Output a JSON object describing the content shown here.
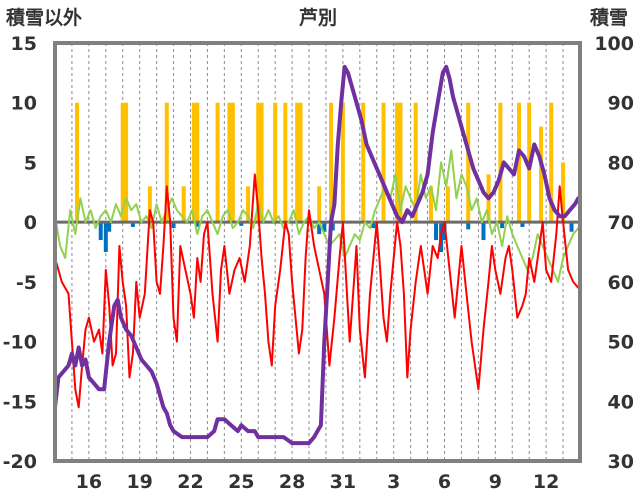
{
  "chart_data": {
    "type": "bar+line",
    "title": "芦別",
    "left_axis": {
      "label": "積雪以外",
      "ylim": [
        -20,
        15
      ],
      "ticks": [
        15,
        10,
        5,
        0,
        -5,
        -10,
        -15,
        -20
      ],
      "tick_labels": [
        "15",
        "10",
        "5",
        "0",
        "-5",
        "-10",
        "-15",
        "-20"
      ]
    },
    "right_axis": {
      "label": "積雪",
      "ylim": [
        30,
        100
      ],
      "ticks": [
        100,
        90,
        80,
        70,
        60,
        50,
        40,
        30
      ],
      "tick_labels": [
        "100",
        "90",
        "80",
        "70",
        "60",
        "50",
        "40",
        "30"
      ]
    },
    "x_axis": {
      "day_range": [
        14,
        45
      ],
      "tick_days": [
        16,
        19,
        22,
        25,
        28,
        31,
        34,
        37,
        40,
        43
      ],
      "tick_labels": [
        "16",
        "19",
        "22",
        "25",
        "28",
        "31",
        "3",
        "6",
        "9",
        "12"
      ]
    },
    "grid": "vertical-dashed-daily",
    "colors": {
      "snow_depth": "#7030a0",
      "temperature": "#ff0000",
      "green_series": "#92d050",
      "orange_bars": "#ffc000",
      "blue_bars": "#0070c0",
      "zero_line": "#6b6b6b",
      "frame": "#808080"
    },
    "orange_bars": [
      {
        "day": 15.3,
        "value": 10
      },
      {
        "day": 18.0,
        "value": 10
      },
      {
        "day": 18.2,
        "value": 10
      },
      {
        "day": 19.6,
        "value": 3
      },
      {
        "day": 20.6,
        "value": 10
      },
      {
        "day": 21.6,
        "value": 3
      },
      {
        "day": 22.2,
        "value": 10
      },
      {
        "day": 22.4,
        "value": 10
      },
      {
        "day": 23.6,
        "value": 10
      },
      {
        "day": 24.3,
        "value": 10
      },
      {
        "day": 24.5,
        "value": 10
      },
      {
        "day": 25.4,
        "value": 3
      },
      {
        "day": 26.0,
        "value": 10
      },
      {
        "day": 26.2,
        "value": 10
      },
      {
        "day": 27.0,
        "value": 10
      },
      {
        "day": 27.6,
        "value": 10
      },
      {
        "day": 28.3,
        "value": 10
      },
      {
        "day": 28.5,
        "value": 10
      },
      {
        "day": 29.6,
        "value": 3
      },
      {
        "day": 30.3,
        "value": 10
      },
      {
        "day": 31.0,
        "value": 10
      },
      {
        "day": 32.2,
        "value": 10
      },
      {
        "day": 33.4,
        "value": 10
      },
      {
        "day": 34.2,
        "value": 10
      },
      {
        "day": 34.4,
        "value": 10
      },
      {
        "day": 35.3,
        "value": 10
      },
      {
        "day": 36.2,
        "value": 3
      },
      {
        "day": 37.2,
        "value": 3
      },
      {
        "day": 38.4,
        "value": 10
      },
      {
        "day": 39.6,
        "value": 4
      },
      {
        "day": 40.3,
        "value": 10
      },
      {
        "day": 41.4,
        "value": 10
      },
      {
        "day": 42.0,
        "value": 10
      },
      {
        "day": 42.7,
        "value": 8
      },
      {
        "day": 43.3,
        "value": 10
      },
      {
        "day": 44.0,
        "value": 5
      }
    ],
    "blue_bars": [
      {
        "day": 16.7,
        "value": -1.5
      },
      {
        "day": 17.0,
        "value": -2.5
      },
      {
        "day": 17.2,
        "value": -0.8
      },
      {
        "day": 18.6,
        "value": -0.4
      },
      {
        "day": 21.0,
        "value": -0.5
      },
      {
        "day": 22.4,
        "value": -0.4
      },
      {
        "day": 25.0,
        "value": -0.3
      },
      {
        "day": 29.6,
        "value": -1.0
      },
      {
        "day": 29.9,
        "value": -0.8
      },
      {
        "day": 30.4,
        "value": -0.7
      },
      {
        "day": 32.8,
        "value": -0.5
      },
      {
        "day": 36.5,
        "value": -1.5
      },
      {
        "day": 36.8,
        "value": -2.5
      },
      {
        "day": 37.0,
        "value": -1.5
      },
      {
        "day": 38.4,
        "value": -0.6
      },
      {
        "day": 39.3,
        "value": -1.5
      },
      {
        "day": 40.4,
        "value": -0.5
      },
      {
        "day": 41.6,
        "value": -0.4
      },
      {
        "day": 44.5,
        "value": -0.8
      }
    ],
    "temperature": {
      "x": [
        14.0,
        14.4,
        14.8,
        15.0,
        15.2,
        15.4,
        15.6,
        15.8,
        16.0,
        16.3,
        16.6,
        16.8,
        17.0,
        17.2,
        17.4,
        17.6,
        17.8,
        18.0,
        18.2,
        18.4,
        18.6,
        18.8,
        19.0,
        19.3,
        19.6,
        19.8,
        20.0,
        20.2,
        20.4,
        20.6,
        20.8,
        21.0,
        21.2,
        21.4,
        21.7,
        22.0,
        22.2,
        22.4,
        22.6,
        22.8,
        23.0,
        23.3,
        23.6,
        23.8,
        24.0,
        24.3,
        24.6,
        24.9,
        25.2,
        25.5,
        25.8,
        26.0,
        26.2,
        26.4,
        26.6,
        26.8,
        27.0,
        27.3,
        27.6,
        27.8,
        28.0,
        28.2,
        28.4,
        28.6,
        28.8,
        29.0,
        29.3,
        29.6,
        29.9,
        30.2,
        30.5,
        30.8,
        31.0,
        31.2,
        31.4,
        31.6,
        31.8,
        32.0,
        32.3,
        32.6,
        32.8,
        33.0,
        33.2,
        33.4,
        33.6,
        33.8,
        34.0,
        34.2,
        34.4,
        34.6,
        34.8,
        35.0,
        35.3,
        35.6,
        35.8,
        36.0,
        36.3,
        36.6,
        36.8,
        37.0,
        37.3,
        37.6,
        37.8,
        38.0,
        38.3,
        38.6,
        38.8,
        39.0,
        39.3,
        39.6,
        39.8,
        40.0,
        40.3,
        40.6,
        40.8,
        41.0,
        41.3,
        41.6,
        41.8,
        42.0,
        42.3,
        42.6,
        42.8,
        43.0,
        43.3,
        43.6,
        43.8,
        44.0,
        44.3,
        44.6,
        44.9
      ],
      "y": [
        -3,
        -5,
        -6,
        -10,
        -14,
        -15.5,
        -12,
        -9,
        -8,
        -10,
        -9,
        -11,
        -4,
        -7,
        -12,
        -11,
        -2,
        -5,
        -7,
        -13,
        -11,
        -5,
        -8,
        -6,
        1,
        0,
        -5,
        -6,
        -2,
        3,
        0,
        -8,
        -10,
        -2,
        -4,
        -6,
        -8,
        -3,
        -5,
        -1,
        0,
        -6,
        -10,
        -4,
        -2,
        -6,
        -4,
        -3,
        -5,
        -2,
        4,
        1,
        -3,
        -6,
        -10,
        -12,
        -7,
        -4,
        0,
        -1,
        -5,
        -8,
        -11,
        -9,
        -3,
        1,
        -2,
        -4,
        -6,
        -12,
        -8,
        -3,
        0,
        -5,
        -10,
        -6,
        -2,
        -9,
        -13,
        -6,
        -3,
        0,
        -4,
        -8,
        -10,
        -6,
        -3,
        0,
        -2,
        -6,
        -13,
        -9,
        -5,
        -2,
        -4,
        -6,
        -2,
        -3,
        -1,
        0,
        -4,
        -8,
        -5,
        -2,
        -6,
        -10,
        -12,
        -14,
        -9,
        -5,
        -2,
        -4,
        -6,
        -3,
        -2,
        -4,
        -8,
        -7,
        -6,
        -3,
        -5,
        -2,
        0,
        -4,
        -5,
        -1,
        3,
        0,
        -4,
        -5,
        -5.5
      ]
    },
    "green_series": {
      "x": [
        14.0,
        14.3,
        14.6,
        14.9,
        15.2,
        15.5,
        15.8,
        16.1,
        16.4,
        16.7,
        17.0,
        17.3,
        17.6,
        17.9,
        18.2,
        18.5,
        18.8,
        19.1,
        19.4,
        19.7,
        20.0,
        20.3,
        20.6,
        20.9,
        21.2,
        21.5,
        21.8,
        22.1,
        22.4,
        22.7,
        23.0,
        23.3,
        23.6,
        23.9,
        24.2,
        24.5,
        24.8,
        25.1,
        25.4,
        25.7,
        26.0,
        26.3,
        26.6,
        26.9,
        27.2,
        27.5,
        27.8,
        28.1,
        28.4,
        28.7,
        29.0,
        29.3,
        29.6,
        29.9,
        30.2,
        30.5,
        30.8,
        31.1,
        31.4,
        31.7,
        32.0,
        32.3,
        32.6,
        32.9,
        33.2,
        33.5,
        33.8,
        34.1,
        34.4,
        34.7,
        35.0,
        35.3,
        35.6,
        35.9,
        36.2,
        36.5,
        36.8,
        37.1,
        37.4,
        37.7,
        38.0,
        38.3,
        38.6,
        38.9,
        39.2,
        39.5,
        39.8,
        40.1,
        40.4,
        40.7,
        41.0,
        41.3,
        41.6,
        41.9,
        42.2,
        42.5,
        42.8,
        43.1,
        43.4,
        43.7,
        44.0,
        44.3,
        44.6,
        44.9
      ],
      "y": [
        0.5,
        -2,
        -3,
        1,
        -1,
        2,
        0,
        1,
        -0.5,
        0.5,
        1,
        0,
        1.5,
        0.5,
        2,
        1,
        1.5,
        0,
        0.5,
        -0.5,
        1.5,
        0,
        1,
        2,
        1,
        0.5,
        0,
        1,
        -1,
        0.5,
        1,
        0,
        -1,
        0.5,
        1,
        -0.5,
        0,
        1,
        0.5,
        -0.5,
        1.5,
        0,
        1,
        0,
        0.5,
        -0.5,
        0,
        1,
        -1,
        0,
        0.5,
        -0.5,
        0,
        -1,
        -2,
        -1.5,
        -1,
        -3,
        -2,
        -1,
        -1.5,
        0,
        -0.5,
        1,
        2,
        3,
        2,
        4,
        1,
        3,
        2,
        1,
        4,
        2,
        3,
        1,
        5,
        3,
        6,
        2,
        4,
        3,
        1,
        2,
        0,
        1,
        -1,
        0,
        -2,
        0.5,
        -1,
        -2,
        -3,
        -4,
        -3,
        -1,
        -2,
        -3,
        -4,
        -5,
        -3,
        -2,
        -1,
        -0.5
      ]
    },
    "snow_depth": {
      "x": [
        14.0,
        14.2,
        14.5,
        14.8,
        15.0,
        15.2,
        15.4,
        15.6,
        15.8,
        16.0,
        16.3,
        16.6,
        16.9,
        17.2,
        17.5,
        17.7,
        17.9,
        18.2,
        18.5,
        18.8,
        19.1,
        19.4,
        19.7,
        20.0,
        20.2,
        20.4,
        20.6,
        20.8,
        21.0,
        21.5,
        22.0,
        22.5,
        23.0,
        23.4,
        23.6,
        23.8,
        24.0,
        24.4,
        24.8,
        25.0,
        25.4,
        25.8,
        26.0,
        26.5,
        27.0,
        27.5,
        28.0,
        28.5,
        29.0,
        29.3,
        29.5,
        29.7,
        29.9,
        30.1,
        30.3,
        30.5,
        30.7,
        30.9,
        31.1,
        31.3,
        31.5,
        31.8,
        32.1,
        32.4,
        32.7,
        33.0,
        33.3,
        33.6,
        33.9,
        34.2,
        34.5,
        34.8,
        35.1,
        35.4,
        35.7,
        36.0,
        36.3,
        36.6,
        36.9,
        37.1,
        37.3,
        37.5,
        37.8,
        38.1,
        38.4,
        38.7,
        39.0,
        39.3,
        39.6,
        39.9,
        40.2,
        40.5,
        40.8,
        41.1,
        41.4,
        41.7,
        42.0,
        42.3,
        42.6,
        42.9,
        43.2,
        43.5,
        43.8,
        44.1,
        44.4,
        44.7,
        44.9
      ],
      "y": [
        39,
        44,
        45,
        46,
        48,
        46,
        49,
        46,
        47,
        44,
        43,
        42,
        42,
        50,
        56,
        57,
        54,
        52,
        51,
        49,
        47,
        46,
        45,
        43,
        41,
        39,
        38,
        36,
        35,
        34,
        34,
        34,
        34,
        35,
        37,
        37,
        37,
        36,
        35,
        36,
        35,
        35,
        34,
        34,
        34,
        34,
        33,
        33,
        33,
        34,
        35,
        36,
        50,
        60,
        70,
        73,
        83,
        90,
        96,
        95,
        93,
        90,
        87,
        83,
        81,
        79,
        77,
        75,
        73,
        71,
        70,
        72,
        71,
        73,
        75,
        78,
        85,
        90,
        95,
        96,
        94,
        91,
        88,
        85,
        82,
        79,
        77,
        75,
        74,
        75,
        77,
        80,
        79,
        78,
        82,
        81,
        79,
        83,
        81,
        78,
        74,
        72,
        71,
        71,
        72,
        73,
        74
      ]
    }
  }
}
